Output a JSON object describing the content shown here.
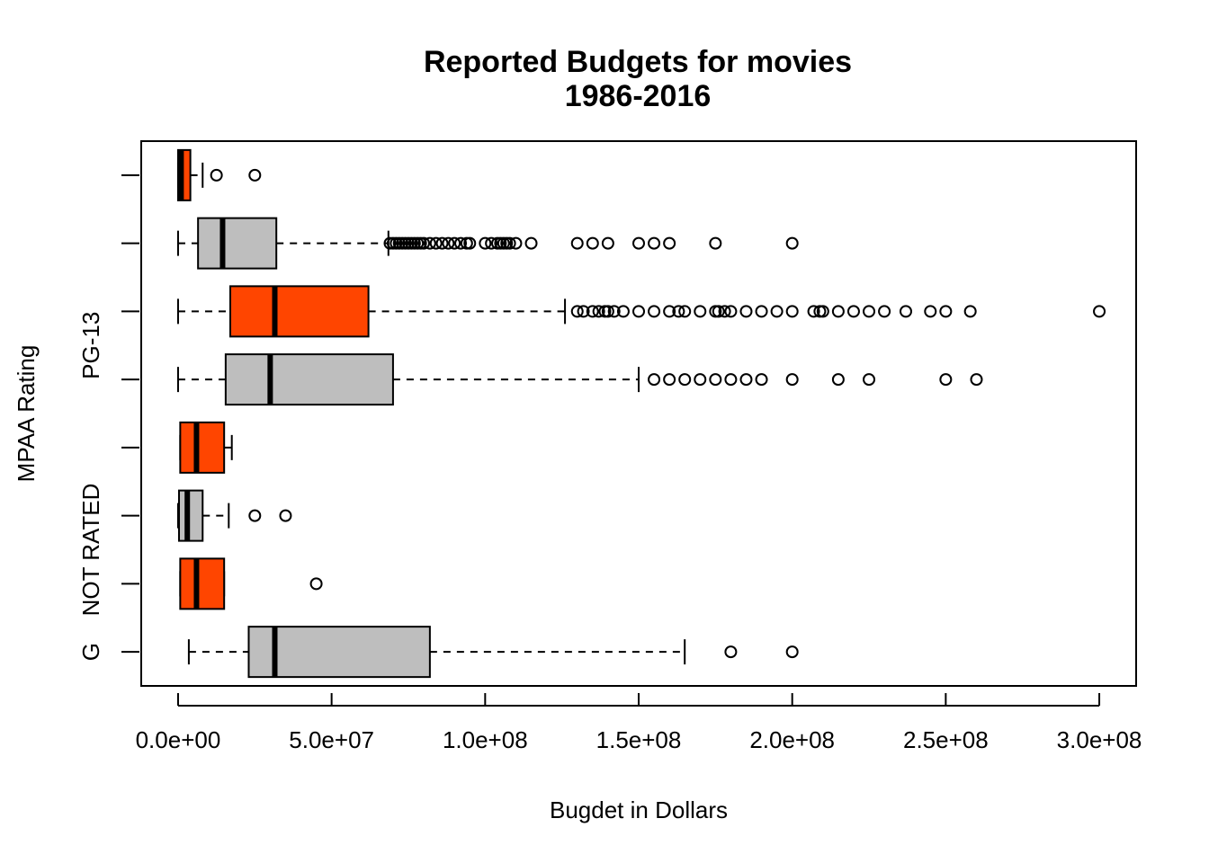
{
  "chart_data": {
    "type": "boxplot",
    "orientation": "horizontal",
    "title_lines": [
      "Reported Budgets for movies",
      "1986-2016"
    ],
    "xlabel": "Bugdet in Dollars",
    "ylabel": "MPAA Rating",
    "xlim": [
      -12000000,
      312000000
    ],
    "x_ticks": [
      0,
      50000000,
      100000000,
      150000000,
      200000000,
      250000000,
      300000000
    ],
    "x_tick_labels": [
      "0.0e+00",
      "5.0e+07",
      "1.0e+08",
      "1.5e+08",
      "2.0e+08",
      "2.5e+08",
      "3.0e+08"
    ],
    "y_tick_labels": [
      "G",
      "NOT RATED",
      "PG-13"
    ],
    "y_tick_label_positions": [
      1,
      2.5,
      5.5
    ],
    "colors": {
      "orange": "#ff4500",
      "gray": "#bebebe"
    },
    "boxes": [
      {
        "pos": 1,
        "color": "gray",
        "whisker_low": 3500000,
        "q1": 23000000,
        "median": 31500000,
        "q3": 82000000,
        "whisker_high": 165000000,
        "outliers": [
          180000000,
          200000000
        ]
      },
      {
        "pos": 2,
        "color": "orange",
        "whisker_low": 700000,
        "q1": 700000,
        "median": 6000000,
        "q3": 15000000,
        "whisker_high": 15000000,
        "outliers": [
          45000000
        ]
      },
      {
        "pos": 3,
        "color": "gray",
        "whisker_low": 0,
        "q1": 300000,
        "median": 3000000,
        "q3": 8000000,
        "whisker_high": 16500000,
        "outliers": [
          25000000,
          35000000
        ]
      },
      {
        "pos": 4,
        "color": "orange",
        "whisker_low": 700000,
        "q1": 700000,
        "median": 6000000,
        "q3": 15000000,
        "whisker_high": 17500000,
        "outliers": []
      },
      {
        "pos": 5,
        "color": "gray",
        "whisker_low": 0,
        "q1": 15500000,
        "median": 30000000,
        "q3": 70000000,
        "whisker_high": 150000000,
        "outliers": [
          155000000,
          160000000,
          165000000,
          170000000,
          175000000,
          180000000,
          185000000,
          190000000,
          200000000,
          215000000,
          225000000,
          250000000,
          260000000
        ]
      },
      {
        "pos": 6,
        "color": "orange",
        "whisker_low": 0,
        "q1": 17000000,
        "median": 31500000,
        "q3": 62000000,
        "whisker_high": 126000000,
        "outliers": [
          130000000,
          132000000,
          135000000,
          137000000,
          139000000,
          140000000,
          142000000,
          145000000,
          150000000,
          155000000,
          160000000,
          163000000,
          165000000,
          170000000,
          175000000,
          176000000,
          178000000,
          180000000,
          185000000,
          190000000,
          195000000,
          200000000,
          207000000,
          209000000,
          210000000,
          215000000,
          220000000,
          225000000,
          230000000,
          237000000,
          245000000,
          250000000,
          258000000,
          300000000
        ]
      },
      {
        "pos": 7,
        "color": "gray",
        "whisker_low": 0,
        "q1": 6500000,
        "median": 14500000,
        "q3": 32000000,
        "whisker_high": 68500000,
        "outliers": [
          69000000,
          70000000,
          71000000,
          72000000,
          73000000,
          74000000,
          75000000,
          76000000,
          77000000,
          78000000,
          79000000,
          80000000,
          82000000,
          84000000,
          86000000,
          88000000,
          90000000,
          92000000,
          94000000,
          95000000,
          100000000,
          102000000,
          104000000,
          105000000,
          106000000,
          107000000,
          108000000,
          110000000,
          115000000,
          130000000,
          135000000,
          140000000,
          150000000,
          155000000,
          160000000,
          175000000,
          200000000
        ]
      },
      {
        "pos": 8,
        "color": "orange",
        "whisker_low": 0,
        "q1": 0,
        "median": 1000000,
        "q3": 4000000,
        "whisker_high": 8000000,
        "outliers": [
          12500000,
          25000000
        ]
      }
    ]
  }
}
